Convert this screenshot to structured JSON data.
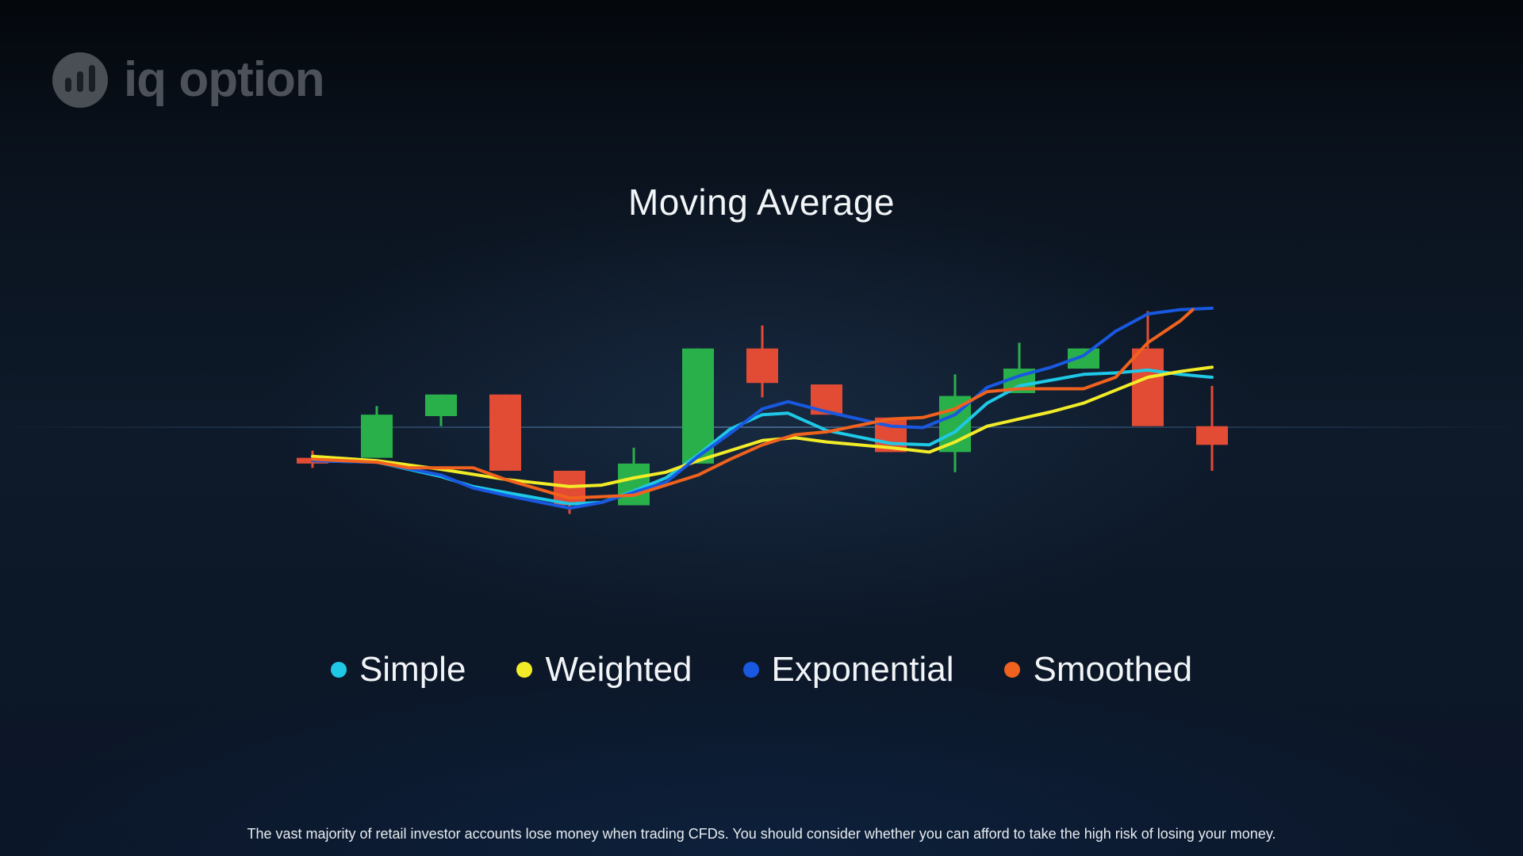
{
  "brand": {
    "name": "iq option",
    "logo_color": "#4a4f56"
  },
  "disclaimer": "The vast majority of retail investor accounts lose money when trading CFDs. You should consider whether you can afford to take the high risk of losing your money.",
  "chart_data": {
    "type": "line",
    "title": "Moving Average",
    "xlabel": "",
    "ylabel": "",
    "grid": false,
    "axes_visible": false,
    "legend_position": "bottom-center",
    "ylim": [
      0,
      100
    ],
    "candles": [
      {
        "open": 51.0,
        "close": 53.0,
        "high": 55.5,
        "low": 49.5,
        "color": "red"
      },
      {
        "open": 53.0,
        "close": 68.0,
        "high": 71.0,
        "low": 53.0,
        "color": "green"
      },
      {
        "open": 67.5,
        "close": 75.0,
        "high": 75.0,
        "low": 64.0,
        "color": "green"
      },
      {
        "open": 75.0,
        "close": 48.5,
        "high": 75.0,
        "low": 48.5,
        "color": "red"
      },
      {
        "open": 48.5,
        "close": 36.5,
        "high": 48.5,
        "low": 33.5,
        "color": "red"
      },
      {
        "open": 36.5,
        "close": 51.0,
        "high": 56.5,
        "low": 36.5,
        "color": "green"
      },
      {
        "open": 51.0,
        "close": 91.0,
        "high": 91.0,
        "low": 51.0,
        "color": "green"
      },
      {
        "open": 91.0,
        "close": 79.0,
        "high": 99.0,
        "low": 74.0,
        "color": "red"
      },
      {
        "open": 78.5,
        "close": 68.0,
        "high": 78.5,
        "low": 68.0,
        "color": "red"
      },
      {
        "open": 67.0,
        "close": 55.0,
        "high": 67.0,
        "low": 55.0,
        "color": "red"
      },
      {
        "open": 55.0,
        "close": 74.5,
        "high": 82.0,
        "low": 48.0,
        "color": "green"
      },
      {
        "open": 75.5,
        "close": 84.0,
        "high": 93.0,
        "low": 75.5,
        "color": "green"
      },
      {
        "open": 84.0,
        "close": 91.0,
        "high": 91.0,
        "low": 84.0,
        "color": "green"
      },
      {
        "open": 91.0,
        "close": 64.0,
        "high": 104.0,
        "low": 64.0,
        "color": "red"
      },
      {
        "open": 64.0,
        "close": 57.5,
        "high": 78.0,
        "low": 48.5,
        "color": "red"
      }
    ],
    "series": [
      {
        "name": "Simple",
        "color": "#1ec8e6",
        "values": [
          [
            0.0,
            52.0
          ],
          [
            1.0,
            51.5
          ],
          [
            2.0,
            46.5
          ],
          [
            2.5,
            43.0
          ],
          [
            3.0,
            41.0
          ],
          [
            4.0,
            37.0
          ],
          [
            4.5,
            37.5
          ],
          [
            5.0,
            41.5
          ],
          [
            5.5,
            46.0
          ],
          [
            6.0,
            54.0
          ],
          [
            6.5,
            63.0
          ],
          [
            7.0,
            68.0
          ],
          [
            7.4,
            68.5
          ],
          [
            8.0,
            62.5
          ],
          [
            9.0,
            58.0
          ],
          [
            9.6,
            57.5
          ],
          [
            10.0,
            62.0
          ],
          [
            10.5,
            72.0
          ],
          [
            11.0,
            78.0
          ],
          [
            11.5,
            80.0
          ],
          [
            12.0,
            82.0
          ],
          [
            12.5,
            82.5
          ],
          [
            13.0,
            83.5
          ],
          [
            13.5,
            82.0
          ],
          [
            14.0,
            81.0
          ]
        ]
      },
      {
        "name": "Weighted",
        "color": "#f2ec28",
        "values": [
          [
            0.0,
            53.5
          ],
          [
            1.0,
            52.0
          ],
          [
            1.5,
            50.5
          ],
          [
            2.0,
            49.0
          ],
          [
            3.0,
            45.5
          ],
          [
            4.0,
            43.0
          ],
          [
            4.5,
            43.5
          ],
          [
            5.0,
            46.0
          ],
          [
            5.5,
            48.0
          ],
          [
            6.0,
            52.0
          ],
          [
            6.5,
            55.5
          ],
          [
            7.0,
            59.0
          ],
          [
            7.5,
            60.0
          ],
          [
            8.0,
            58.5
          ],
          [
            9.0,
            56.5
          ],
          [
            9.6,
            55.0
          ],
          [
            10.0,
            58.5
          ],
          [
            10.5,
            64.0
          ],
          [
            11.0,
            66.5
          ],
          [
            11.5,
            69.0
          ],
          [
            12.0,
            72.0
          ],
          [
            12.5,
            76.5
          ],
          [
            13.0,
            81.0
          ],
          [
            13.5,
            83.0
          ],
          [
            14.0,
            84.5
          ]
        ]
      },
      {
        "name": "Exponential",
        "color": "#1958e0",
        "values": [
          [
            0.0,
            52.0
          ],
          [
            1.0,
            51.5
          ],
          [
            2.0,
            47.0
          ],
          [
            2.5,
            42.5
          ],
          [
            3.0,
            40.0
          ],
          [
            4.0,
            35.5
          ],
          [
            4.5,
            37.5
          ],
          [
            5.0,
            41.0
          ],
          [
            5.5,
            44.5
          ],
          [
            6.0,
            53.5
          ],
          [
            6.5,
            61.5
          ],
          [
            7.0,
            70.0
          ],
          [
            7.4,
            72.5
          ],
          [
            8.0,
            69.0
          ],
          [
            9.0,
            64.0
          ],
          [
            9.5,
            63.5
          ],
          [
            10.0,
            68.0
          ],
          [
            10.5,
            77.5
          ],
          [
            11.0,
            81.5
          ],
          [
            11.5,
            84.5
          ],
          [
            12.0,
            88.5
          ],
          [
            12.5,
            97.0
          ],
          [
            13.0,
            103.0
          ],
          [
            13.5,
            104.5
          ],
          [
            14.0,
            105.0
          ]
        ]
      },
      {
        "name": "Smoothed",
        "color": "#f0621e",
        "values": [
          [
            0.0,
            52.5
          ],
          [
            1.0,
            51.5
          ],
          [
            1.5,
            49.5
          ],
          [
            2.0,
            49.5
          ],
          [
            2.5,
            49.5
          ],
          [
            3.0,
            45.5
          ],
          [
            4.0,
            39.0
          ],
          [
            4.5,
            39.5
          ],
          [
            5.0,
            40.0
          ],
          [
            6.0,
            47.0
          ],
          [
            6.5,
            52.5
          ],
          [
            7.0,
            57.5
          ],
          [
            7.5,
            61.0
          ],
          [
            8.0,
            62.0
          ],
          [
            9.0,
            66.5
          ],
          [
            9.5,
            67.0
          ],
          [
            10.0,
            70.0
          ],
          [
            10.5,
            76.0
          ],
          [
            11.0,
            77.0
          ],
          [
            12.0,
            77.0
          ],
          [
            12.5,
            81.0
          ],
          [
            13.0,
            93.0
          ],
          [
            13.5,
            100.5
          ],
          [
            13.7,
            104.5
          ]
        ]
      }
    ]
  }
}
